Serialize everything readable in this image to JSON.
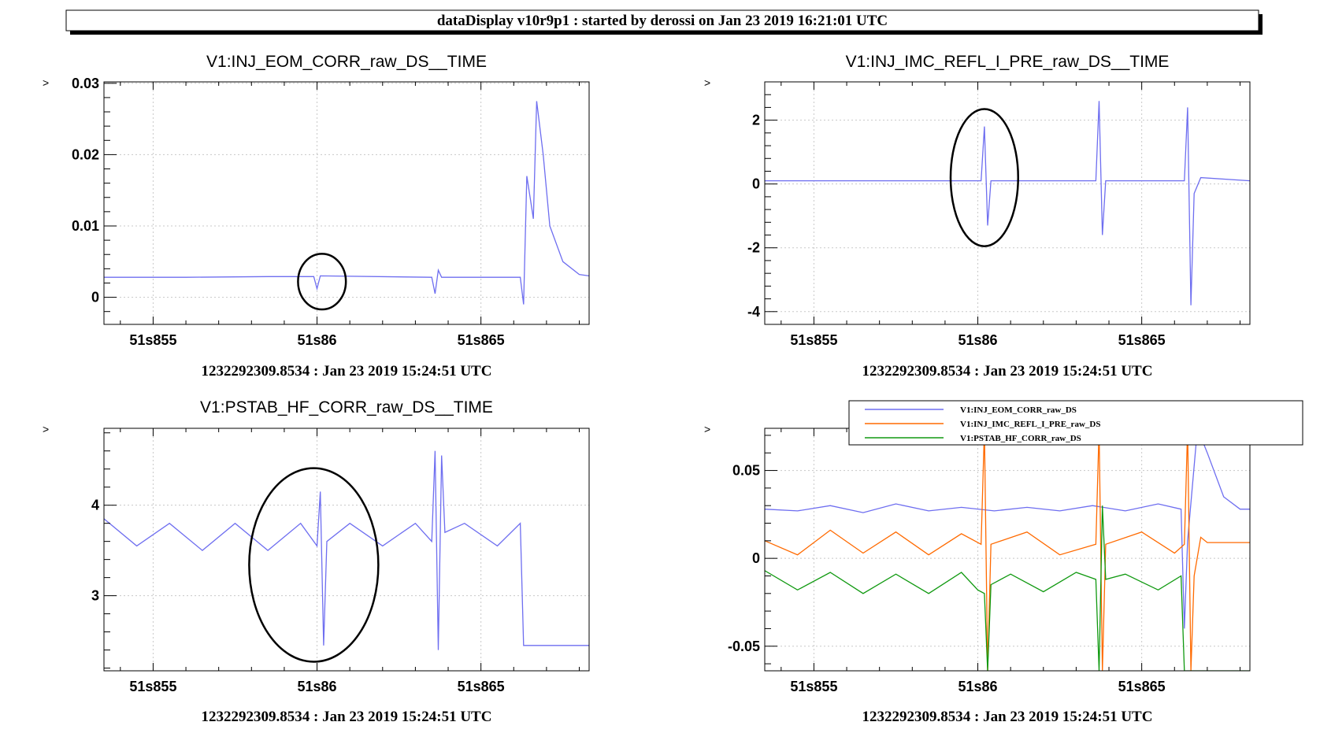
{
  "header": {
    "title": "dataDisplay v10r9p1 : started by derossi on Jan 23 2019 16:21:01 UTC"
  },
  "colors": {
    "blue": "#6e6ef0",
    "orange": "#ff6a00",
    "green": "#109910",
    "frame": "#000000",
    "grid": "#c8c8c8"
  },
  "chart_data": [
    {
      "type": "line",
      "title": "V1:INJ_EOM_CORR_raw_DS__TIME",
      "footer": "1232292309.8534 : Jan 23 2019 15:24:51 UTC",
      "corner_mark": ">",
      "xlabel": "",
      "ylabel": "",
      "x_tick_labels": [
        "51s855",
        "51s86",
        "51s865"
      ],
      "x_ticks": [
        51.855,
        51.86,
        51.865
      ],
      "xlim": [
        51.8535,
        51.8683
      ],
      "y_tick_labels": [
        "0",
        "0.01",
        "0.02",
        "0.03"
      ],
      "y_ticks": [
        0,
        0.01,
        0.02,
        0.03
      ],
      "ylim": [
        -0.0038,
        0.0302
      ],
      "grid": true,
      "series": [
        {
          "color": "#6e6ef0",
          "values": [
            [
              51.8535,
              0.0028
            ],
            [
              51.856,
              0.0028
            ],
            [
              51.8585,
              0.0029
            ],
            [
              51.8599,
              0.0029
            ],
            [
              51.86,
              0.0012
            ],
            [
              51.8601,
              0.003
            ],
            [
              51.8635,
              0.0028
            ],
            [
              51.8636,
              0.0005
            ],
            [
              51.8637,
              0.0038
            ],
            [
              51.8638,
              0.0028
            ],
            [
              51.8662,
              0.0028
            ],
            [
              51.8663,
              -0.001
            ],
            [
              51.8664,
              0.017
            ],
            [
              51.8665,
              0.014
            ],
            [
              51.8666,
              0.011
            ],
            [
              51.8667,
              0.0275
            ],
            [
              51.8669,
              0.02
            ],
            [
              51.8671,
              0.01
            ],
            [
              51.8675,
              0.005
            ],
            [
              51.868,
              0.0032
            ],
            [
              51.8683,
              0.003
            ]
          ]
        }
      ],
      "annotations": [
        {
          "shape": "ellipse",
          "cx": 51.86015,
          "cy": 0.0022,
          "rx": 0.00073,
          "ry": 0.0039
        }
      ]
    },
    {
      "type": "line",
      "title": "V1:INJ_IMC_REFL_I_PRE_raw_DS__TIME",
      "footer": "1232292309.8534 : Jan 23 2019 15:24:51 UTC",
      "corner_mark": ">",
      "xlabel": "",
      "ylabel": "",
      "x_tick_labels": [
        "51s855",
        "51s86",
        "51s865"
      ],
      "x_ticks": [
        51.855,
        51.86,
        51.865
      ],
      "xlim": [
        51.8535,
        51.8683
      ],
      "y_tick_labels": [
        "-4",
        "-2",
        "0",
        "2"
      ],
      "y_ticks": [
        -4,
        -2,
        0,
        2
      ],
      "ylim": [
        -4.4,
        3.2
      ],
      "grid": true,
      "series": [
        {
          "color": "#6e6ef0",
          "values": [
            [
              51.8535,
              0.1
            ],
            [
              51.8601,
              0.1
            ],
            [
              51.8602,
              1.8
            ],
            [
              51.8603,
              -1.3
            ],
            [
              51.8604,
              0.1
            ],
            [
              51.8636,
              0.1
            ],
            [
              51.8637,
              2.6
            ],
            [
              51.8638,
              -1.6
            ],
            [
              51.8639,
              0.1
            ],
            [
              51.8663,
              0.1
            ],
            [
              51.8664,
              2.4
            ],
            [
              51.8665,
              -3.8
            ],
            [
              51.8666,
              -0.3
            ],
            [
              51.8668,
              0.2
            ],
            [
              51.8683,
              0.1
            ]
          ]
        }
      ],
      "annotations": [
        {
          "shape": "ellipse",
          "cx": 51.8602,
          "cy": 0.2,
          "rx": 0.00103,
          "ry": 2.15
        }
      ]
    },
    {
      "type": "line",
      "title": "V1:PSTAB_HF_CORR_raw_DS__TIME",
      "footer": "1232292309.8534 : Jan 23 2019 15:24:51 UTC",
      "corner_mark": ">",
      "xlabel": "",
      "ylabel": "",
      "x_tick_labels": [
        "51s855",
        "51s86",
        "51s865"
      ],
      "x_ticks": [
        51.855,
        51.86,
        51.865
      ],
      "xlim": [
        51.8535,
        51.8683
      ],
      "y_tick_labels": [
        "3",
        "4"
      ],
      "y_ticks": [
        3,
        4
      ],
      "ylim": [
        2.17,
        4.85
      ],
      "grid": true,
      "series": [
        {
          "color": "#6e6ef0",
          "values": [
            [
              51.8535,
              3.85
            ],
            [
              51.8545,
              3.55
            ],
            [
              51.8555,
              3.8
            ],
            [
              51.8565,
              3.5
            ],
            [
              51.8575,
              3.8
            ],
            [
              51.8585,
              3.5
            ],
            [
              51.8595,
              3.8
            ],
            [
              51.86,
              3.55
            ],
            [
              51.8601,
              4.15
            ],
            [
              51.8602,
              2.45
            ],
            [
              51.8603,
              3.6
            ],
            [
              51.861,
              3.8
            ],
            [
              51.862,
              3.55
            ],
            [
              51.863,
              3.8
            ],
            [
              51.8635,
              3.6
            ],
            [
              51.8636,
              4.6
            ],
            [
              51.8637,
              2.4
            ],
            [
              51.8638,
              4.55
            ],
            [
              51.8639,
              3.7
            ],
            [
              51.8645,
              3.8
            ],
            [
              51.8655,
              3.55
            ],
            [
              51.8662,
              3.8
            ],
            [
              51.8663,
              2.45
            ],
            [
              51.8683,
              2.45
            ]
          ]
        }
      ],
      "annotations": [
        {
          "shape": "ellipse",
          "cx": 51.8599,
          "cy": 3.34,
          "rx": 0.00197,
          "ry": 1.07
        }
      ]
    },
    {
      "type": "line",
      "title": "",
      "footer": "1232292309.8534 : Jan 23 2019 15:24:51 UTC",
      "corner_mark": ">",
      "xlabel": "",
      "ylabel": "",
      "x_tick_labels": [
        "51s855",
        "51s86",
        "51s865"
      ],
      "x_ticks": [
        51.855,
        51.86,
        51.865
      ],
      "xlim": [
        51.8535,
        51.8683
      ],
      "y_tick_labels": [
        "-0.05",
        "0",
        "0.05"
      ],
      "y_ticks": [
        -0.05,
        0,
        0.05
      ],
      "ylim": [
        -0.064,
        0.074
      ],
      "grid": true,
      "legend_position": "top-right",
      "series": [
        {
          "name": "V1:INJ_EOM_CORR_raw_DS",
          "color": "#6e6ef0",
          "values": [
            [
              51.8535,
              0.028
            ],
            [
              51.8545,
              0.027
            ],
            [
              51.8555,
              0.03
            ],
            [
              51.8565,
              0.026
            ],
            [
              51.8575,
              0.031
            ],
            [
              51.8585,
              0.027
            ],
            [
              51.8595,
              0.029
            ],
            [
              51.8605,
              0.027
            ],
            [
              51.8615,
              0.029
            ],
            [
              51.8625,
              0.027
            ],
            [
              51.8635,
              0.03
            ],
            [
              51.8645,
              0.027
            ],
            [
              51.8655,
              0.031
            ],
            [
              51.8662,
              0.028
            ],
            [
              51.8663,
              -0.04
            ],
            [
              51.8664,
              0.01
            ],
            [
              51.8667,
              0.074
            ],
            [
              51.867,
              0.06
            ],
            [
              51.8675,
              0.035
            ],
            [
              51.868,
              0.028
            ],
            [
              51.8683,
              0.028
            ]
          ]
        },
        {
          "name": "V1:INJ_IMC_REFL_I_PRE_raw_DS",
          "color": "#ff6a00",
          "values": [
            [
              51.8535,
              0.01
            ],
            [
              51.8545,
              0.002
            ],
            [
              51.8555,
              0.016
            ],
            [
              51.8565,
              0.003
            ],
            [
              51.8575,
              0.015
            ],
            [
              51.8585,
              0.002
            ],
            [
              51.8595,
              0.014
            ],
            [
              51.8601,
              0.008
            ],
            [
              51.8602,
              0.074
            ],
            [
              51.8603,
              -0.064
            ],
            [
              51.8604,
              0.008
            ],
            [
              51.8615,
              0.015
            ],
            [
              51.8625,
              0.002
            ],
            [
              51.8636,
              0.008
            ],
            [
              51.8637,
              0.074
            ],
            [
              51.8638,
              -0.064
            ],
            [
              51.8639,
              0.008
            ],
            [
              51.865,
              0.015
            ],
            [
              51.866,
              0.003
            ],
            [
              51.8663,
              0.008
            ],
            [
              51.8664,
              0.074
            ],
            [
              51.8665,
              -0.064
            ],
            [
              51.8666,
              -0.01
            ],
            [
              51.8668,
              0.012
            ],
            [
              51.867,
              0.009
            ],
            [
              51.8683,
              0.009
            ]
          ]
        },
        {
          "name": "V1:PSTAB_HF_CORR_raw_DS",
          "color": "#109910",
          "values": [
            [
              51.8535,
              -0.007
            ],
            [
              51.8545,
              -0.018
            ],
            [
              51.8555,
              -0.008
            ],
            [
              51.8565,
              -0.02
            ],
            [
              51.8575,
              -0.009
            ],
            [
              51.8585,
              -0.02
            ],
            [
              51.8595,
              -0.008
            ],
            [
              51.86,
              -0.018
            ],
            [
              51.8602,
              -0.02
            ],
            [
              51.8603,
              -0.064
            ],
            [
              51.8604,
              -0.015
            ],
            [
              51.861,
              -0.009
            ],
            [
              51.862,
              -0.019
            ],
            [
              51.863,
              -0.008
            ],
            [
              51.8636,
              -0.012
            ],
            [
              51.8637,
              -0.064
            ],
            [
              51.8638,
              0.03
            ],
            [
              51.8639,
              -0.012
            ],
            [
              51.8645,
              -0.009
            ],
            [
              51.8655,
              -0.018
            ],
            [
              51.8662,
              -0.01
            ],
            [
              51.8663,
              -0.064
            ],
            [
              51.8683,
              -0.064
            ]
          ]
        }
      ]
    }
  ]
}
